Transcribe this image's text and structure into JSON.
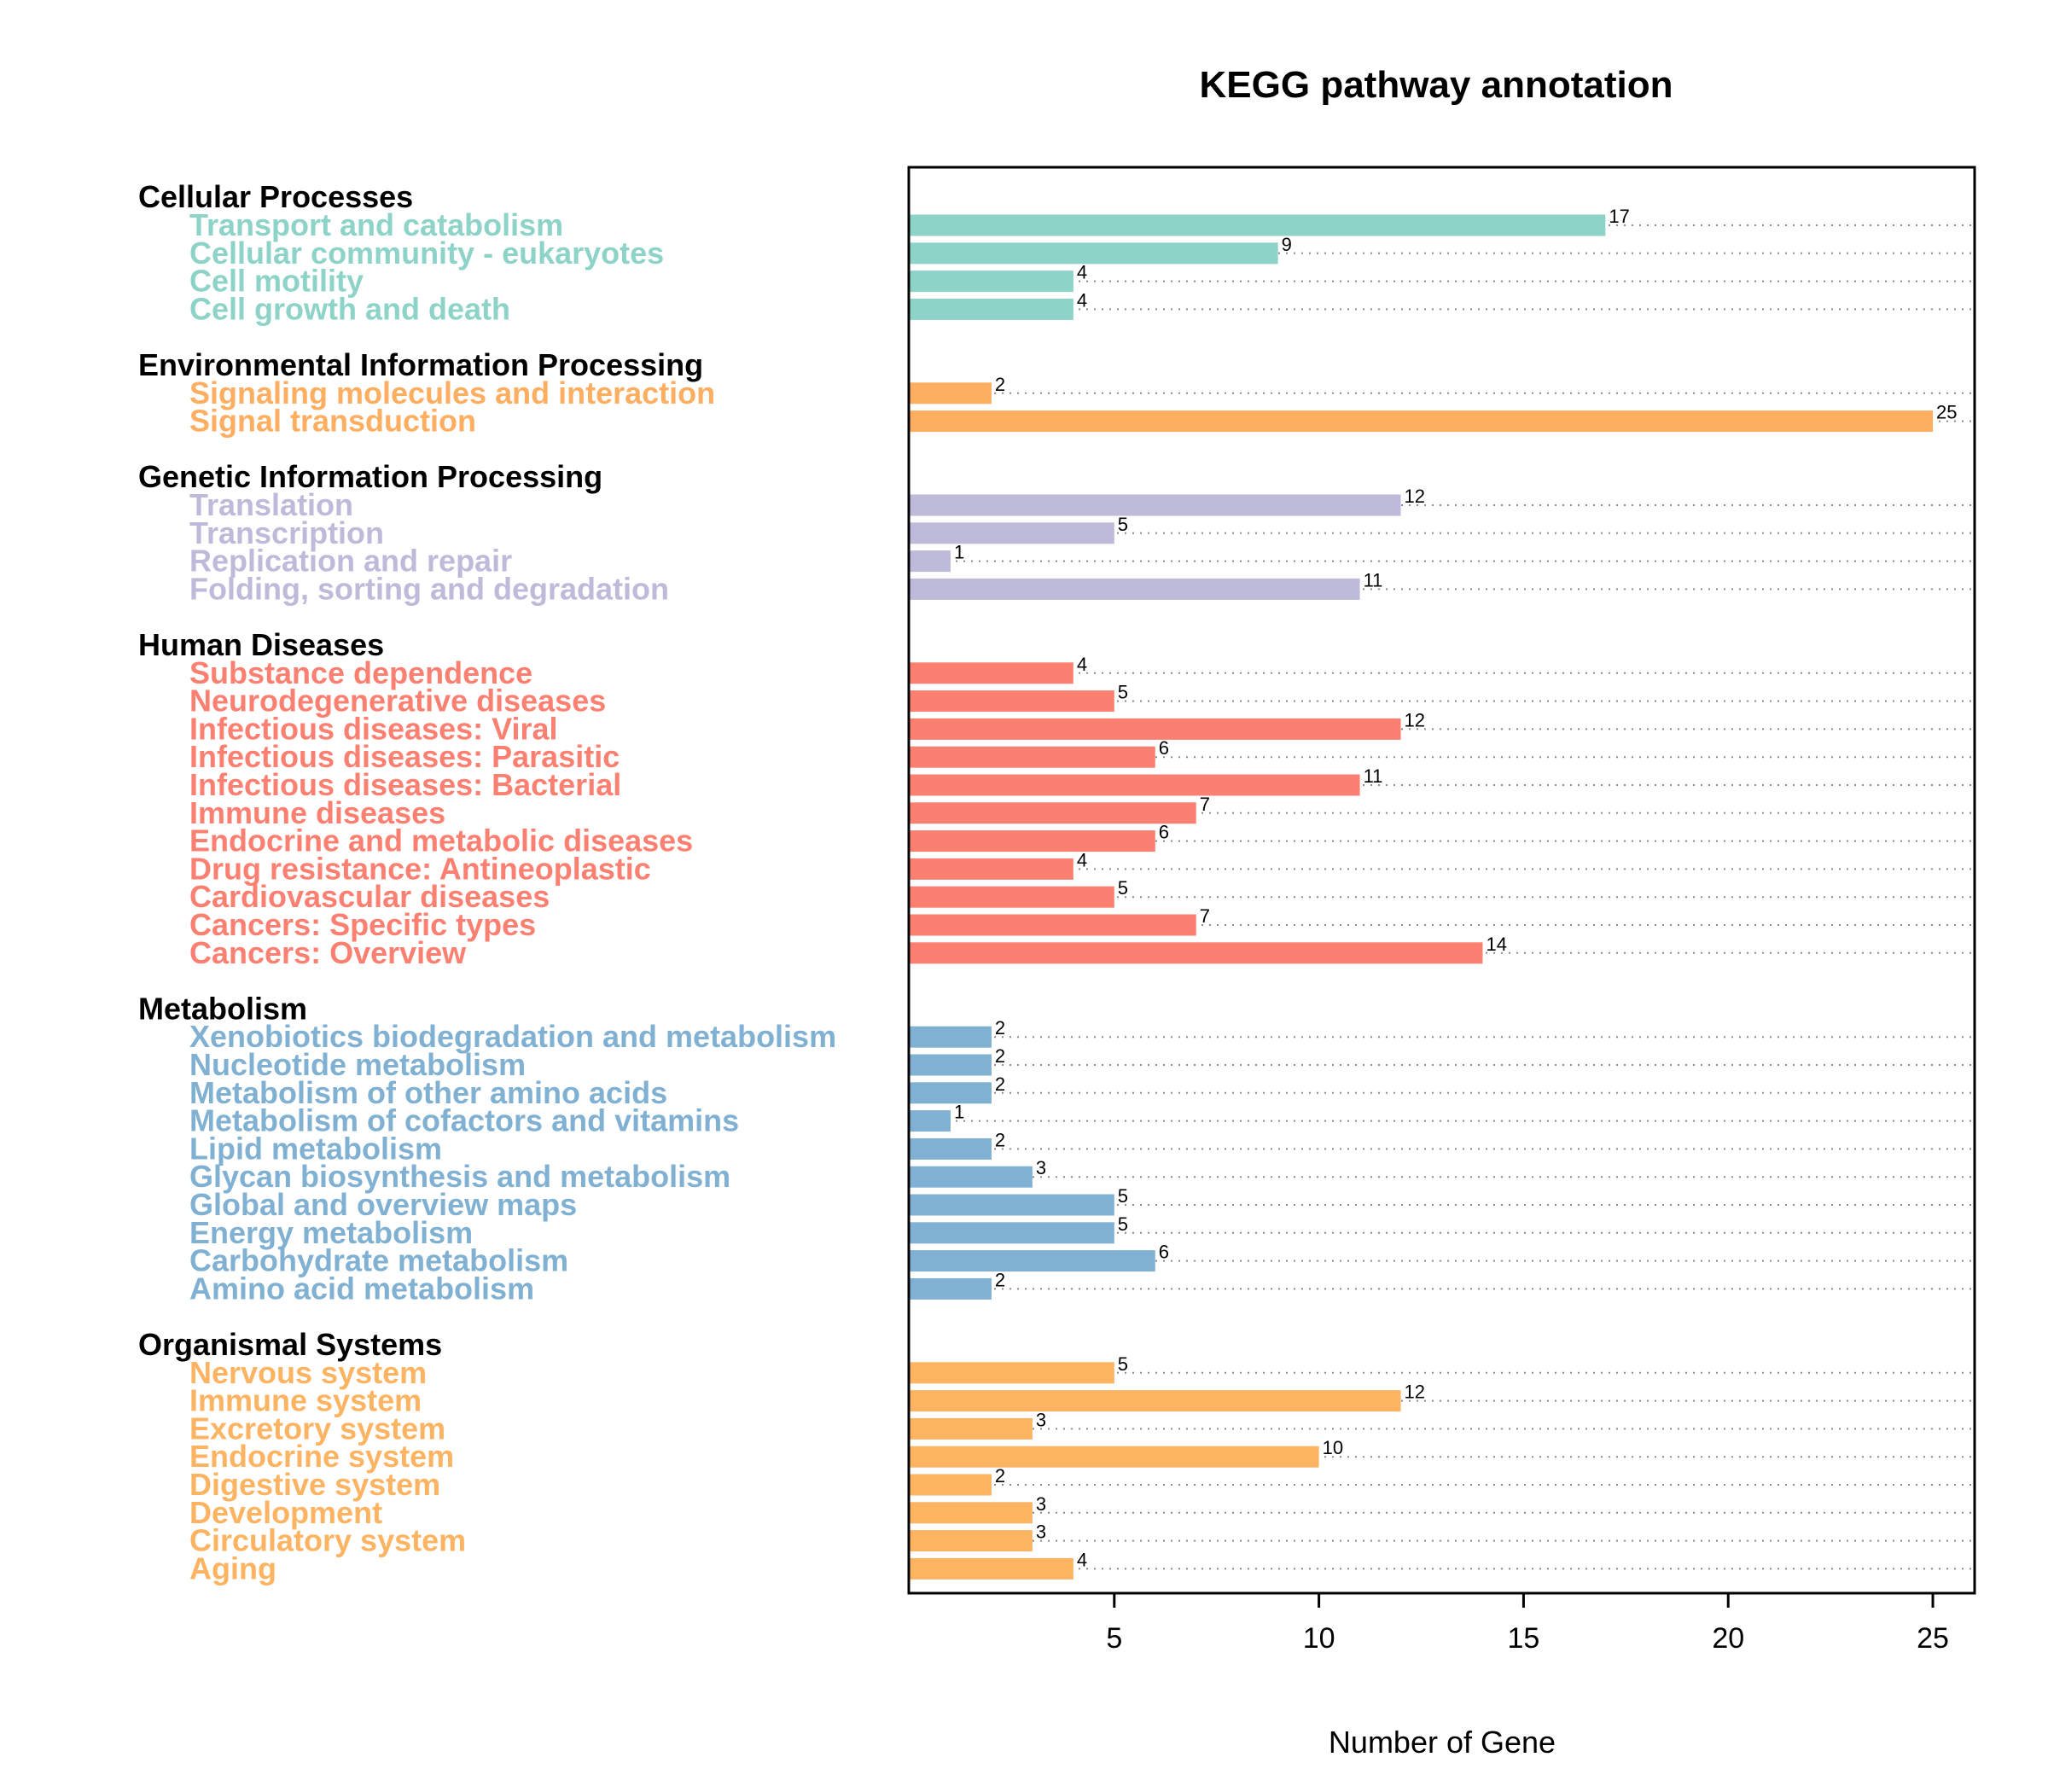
{
  "chart_data": {
    "type": "bar",
    "orientation": "horizontal",
    "title": "KEGG pathway annotation",
    "xlabel": "Number of Gene",
    "ylabel": "",
    "xlim": [
      0,
      26
    ],
    "xticks": [
      5,
      10,
      15,
      20,
      25
    ],
    "grid": "dotted guide lines",
    "groups": [
      {
        "name": "Cellular Processes",
        "color": "#8DD3C7",
        "items": [
          {
            "label": "Transport and catabolism",
            "value": 17
          },
          {
            "label": "Cellular community - eukaryotes",
            "value": 9
          },
          {
            "label": "Cell motility",
            "value": 4
          },
          {
            "label": "Cell growth and death",
            "value": 4
          }
        ]
      },
      {
        "name": "Environmental Information Processing",
        "color": "#FDAE61",
        "items": [
          {
            "label": "Signaling molecules and interaction",
            "value": 2
          },
          {
            "label": "Signal transduction",
            "value": 25
          }
        ]
      },
      {
        "name": "Genetic Information Processing",
        "color": "#BEBADA",
        "items": [
          {
            "label": "Translation",
            "value": 12
          },
          {
            "label": "Transcription",
            "value": 5
          },
          {
            "label": "Replication and repair",
            "value": 1
          },
          {
            "label": "Folding, sorting and degradation",
            "value": 11
          }
        ]
      },
      {
        "name": "Human Diseases",
        "color": "#FB8072",
        "items": [
          {
            "label": "Substance dependence",
            "value": 4
          },
          {
            "label": "Neurodegenerative diseases",
            "value": 5
          },
          {
            "label": "Infectious diseases: Viral",
            "value": 12
          },
          {
            "label": "Infectious diseases: Parasitic",
            "value": 6
          },
          {
            "label": "Infectious diseases: Bacterial",
            "value": 11
          },
          {
            "label": "Immune diseases",
            "value": 7
          },
          {
            "label": "Endocrine and metabolic diseases",
            "value": 6
          },
          {
            "label": "Drug resistance: Antineoplastic",
            "value": 4
          },
          {
            "label": "Cardiovascular diseases",
            "value": 5
          },
          {
            "label": "Cancers: Specific types",
            "value": 7
          },
          {
            "label": "Cancers: Overview",
            "value": 14
          }
        ]
      },
      {
        "name": "Metabolism",
        "color": "#80B1D3",
        "items": [
          {
            "label": "Xenobiotics biodegradation and metabolism",
            "value": 2
          },
          {
            "label": "Nucleotide metabolism",
            "value": 2
          },
          {
            "label": "Metabolism of other amino acids",
            "value": 2
          },
          {
            "label": "Metabolism of cofactors and vitamins",
            "value": 1
          },
          {
            "label": "Lipid metabolism",
            "value": 2
          },
          {
            "label": "Glycan biosynthesis and metabolism",
            "value": 3
          },
          {
            "label": "Global and overview maps",
            "value": 5
          },
          {
            "label": "Energy metabolism",
            "value": 5
          },
          {
            "label": "Carbohydrate metabolism",
            "value": 6
          },
          {
            "label": "Amino acid metabolism",
            "value": 2
          }
        ]
      },
      {
        "name": "Organismal Systems",
        "color": "#FDB462",
        "items": [
          {
            "label": "Nervous system",
            "value": 5
          },
          {
            "label": "Immune system",
            "value": 12
          },
          {
            "label": "Excretory system",
            "value": 3
          },
          {
            "label": "Endocrine system",
            "value": 10
          },
          {
            "label": "Digestive system",
            "value": 2
          },
          {
            "label": "Development",
            "value": 3
          },
          {
            "label": "Circulatory system",
            "value": 3
          },
          {
            "label": "Aging",
            "value": 4
          }
        ]
      }
    ]
  }
}
